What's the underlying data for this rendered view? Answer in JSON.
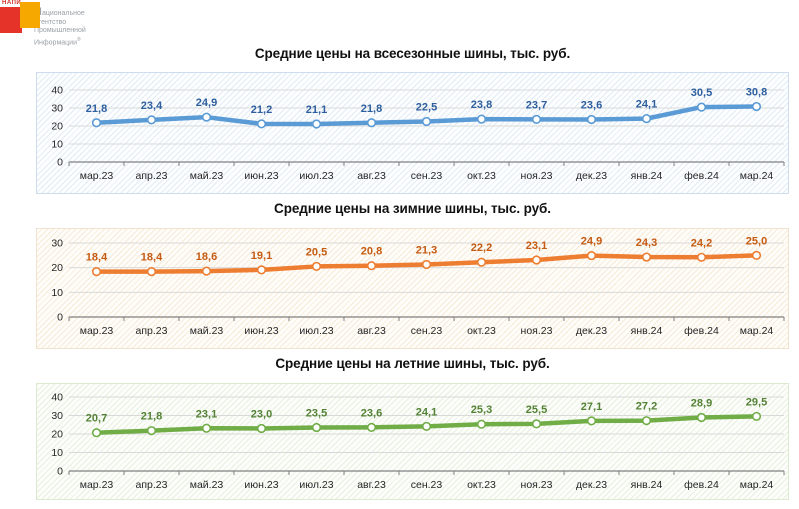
{
  "logo": {
    "mini": "НАПИ",
    "initial": "Н",
    "line1": "ациональное",
    "line2": "Агентство",
    "line3": "Промышленной",
    "line4": "Информации",
    "reg": "®",
    "red_color": "#e63329",
    "orange_color": "#f6a800"
  },
  "style": {
    "grid_color": "#d9d9d9",
    "axis_color": "#808080",
    "axis_text_color": "#262626"
  },
  "categories": [
    "мар.23",
    "апр.23",
    "май.23",
    "июн.23",
    "июл.23",
    "авг.23",
    "сен.23",
    "окт.23",
    "ноя.23",
    "дек.23",
    "янв.24",
    "фев.24",
    "мар.24"
  ],
  "chart_data": [
    {
      "type": "line",
      "title": "Средние цены на всесезонные шины, тыс. руб.",
      "categories": [
        "мар.23",
        "апр.23",
        "май.23",
        "июн.23",
        "июл.23",
        "авг.23",
        "сен.23",
        "окт.23",
        "ноя.23",
        "дек.23",
        "янв.24",
        "фев.24",
        "мар.24"
      ],
      "values": [
        21.8,
        23.4,
        24.9,
        21.2,
        21.1,
        21.8,
        22.5,
        23.8,
        23.7,
        23.6,
        24.1,
        30.5,
        30.8
      ],
      "value_labels": [
        "21,8",
        "23,4",
        "24,9",
        "21,2",
        "21,1",
        "21,8",
        "22,5",
        "23,8",
        "23,7",
        "23,6",
        "24,1",
        "30,5",
        "30,8"
      ],
      "ylim": [
        0,
        40
      ],
      "yticks": [
        0,
        10,
        20,
        30,
        40
      ],
      "grid": true,
      "legend": "none",
      "line_color": "#5b9bd5",
      "label_color": "#2d5e9e",
      "panel_bg": "#fdfeff",
      "hatch_color": "#e3ebf5",
      "border_color": "#cdddee"
    },
    {
      "type": "line",
      "title": "Средние цены на зимние шины, тыс. руб.",
      "categories": [
        "мар.23",
        "апр.23",
        "май.23",
        "июн.23",
        "июл.23",
        "авг.23",
        "сен.23",
        "окт.23",
        "ноя.23",
        "дек.23",
        "янв.24",
        "фев.24",
        "мар.24"
      ],
      "values": [
        18.4,
        18.4,
        18.6,
        19.1,
        20.5,
        20.8,
        21.3,
        22.2,
        23.1,
        24.9,
        24.3,
        24.2,
        25.0
      ],
      "value_labels": [
        "18,4",
        "18,4",
        "18,6",
        "19,1",
        "20,5",
        "20,8",
        "21,3",
        "22,2",
        "23,1",
        "24,9",
        "24,3",
        "24,2",
        "25,0"
      ],
      "ylim": [
        0,
        30
      ],
      "yticks": [
        0,
        10,
        20,
        30
      ],
      "grid": true,
      "legend": "none",
      "line_color": "#ed7d31",
      "label_color": "#c55a11",
      "panel_bg": "#fffdf9",
      "hatch_color": "#f6ead9",
      "border_color": "#f0e2cd"
    },
    {
      "type": "line",
      "title": "Средние цены на летние шины, тыс. руб.",
      "categories": [
        "мар.23",
        "апр.23",
        "май.23",
        "июн.23",
        "июл.23",
        "авг.23",
        "сен.23",
        "окт.23",
        "ноя.23",
        "дек.23",
        "янв.24",
        "фев.24",
        "мар.24"
      ],
      "values": [
        20.7,
        21.8,
        23.1,
        23.0,
        23.5,
        23.6,
        24.1,
        25.3,
        25.5,
        27.1,
        27.2,
        28.9,
        29.5
      ],
      "value_labels": [
        "20,7",
        "21,8",
        "23,1",
        "23,0",
        "23,5",
        "23,6",
        "24,1",
        "25,3",
        "25,5",
        "27,1",
        "27,2",
        "28,9",
        "29,5"
      ],
      "ylim": [
        0,
        40
      ],
      "yticks": [
        0,
        10,
        20,
        30,
        40
      ],
      "grid": true,
      "legend": "none",
      "line_color": "#70ad47",
      "label_color": "#538135",
      "panel_bg": "#fdfefc",
      "hatch_color": "#e6f0dd",
      "border_color": "#dceacf"
    }
  ]
}
